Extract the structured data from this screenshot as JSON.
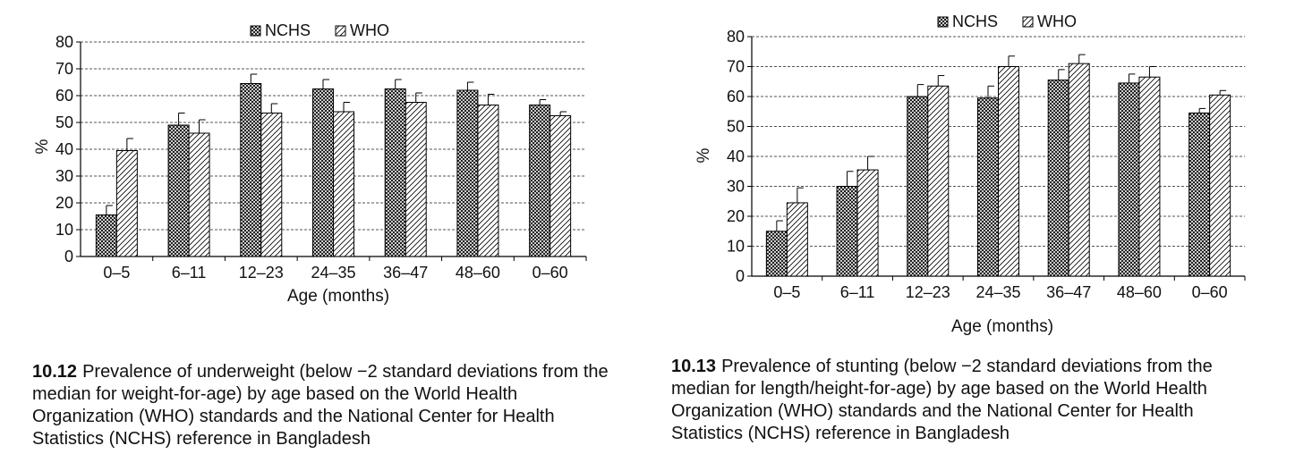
{
  "legend": {
    "nchs": "NCHS",
    "who": "WHO"
  },
  "chart_data": [
    {
      "type": "bar",
      "ylabel": "%",
      "xlabel": "Age (months)",
      "categories": [
        "0–5",
        "6–11",
        "12–23",
        "24–35",
        "36–47",
        "48–60",
        "0–60"
      ],
      "ylim": [
        0,
        80
      ],
      "yticks": [
        0,
        10,
        20,
        30,
        40,
        50,
        60,
        70,
        80
      ],
      "grid": true,
      "legend_position": "top-center",
      "series": [
        {
          "name": "NCHS",
          "values": [
            15.5,
            49,
            64.5,
            62.5,
            62.5,
            62,
            56.5
          ],
          "errors": [
            3.5,
            4.5,
            3.5,
            3.5,
            3.5,
            3,
            2
          ]
        },
        {
          "name": "WHO",
          "values": [
            39.5,
            46,
            53.5,
            54,
            57.5,
            56.5,
            52.5
          ],
          "errors": [
            4.5,
            5,
            3.5,
            3.5,
            3.5,
            4,
            1.5
          ]
        }
      ]
    },
    {
      "type": "bar",
      "ylabel": "%",
      "xlabel": "Age (months)",
      "categories": [
        "0–5",
        "6–11",
        "12–23",
        "24–35",
        "36–47",
        "48–60",
        "0–60"
      ],
      "ylim": [
        0,
        80
      ],
      "yticks": [
        0,
        10,
        20,
        30,
        40,
        50,
        60,
        70,
        80
      ],
      "grid": true,
      "legend_position": "top-center",
      "series": [
        {
          "name": "NCHS",
          "values": [
            15,
            30,
            60,
            59.5,
            65.5,
            64.5,
            54.5
          ],
          "errors": [
            3.5,
            5,
            4,
            4,
            3.5,
            3,
            1.5
          ]
        },
        {
          "name": "WHO",
          "values": [
            24.5,
            35.5,
            63.5,
            70,
            71,
            66.5,
            60.5
          ],
          "errors": [
            5,
            4.5,
            3.5,
            3.5,
            3,
            3.5,
            1.5
          ]
        }
      ]
    }
  ],
  "captions": [
    {
      "number": "10.12",
      "text": "Prevalence of underweight (below −2 standard deviations from the median for weight-for-age) by age based on the World Health Organization (WHO) standards and the National Center for Health Statistics (NCHS) reference in Bangladesh"
    },
    {
      "number": "10.13",
      "text": "Prevalence of stunting (below −2 standard deviations from the median for length/height-for-age) by age based on the World Health Organization (WHO) standards and the National Center for Health Statistics (NCHS) reference in Bangladesh"
    }
  ]
}
